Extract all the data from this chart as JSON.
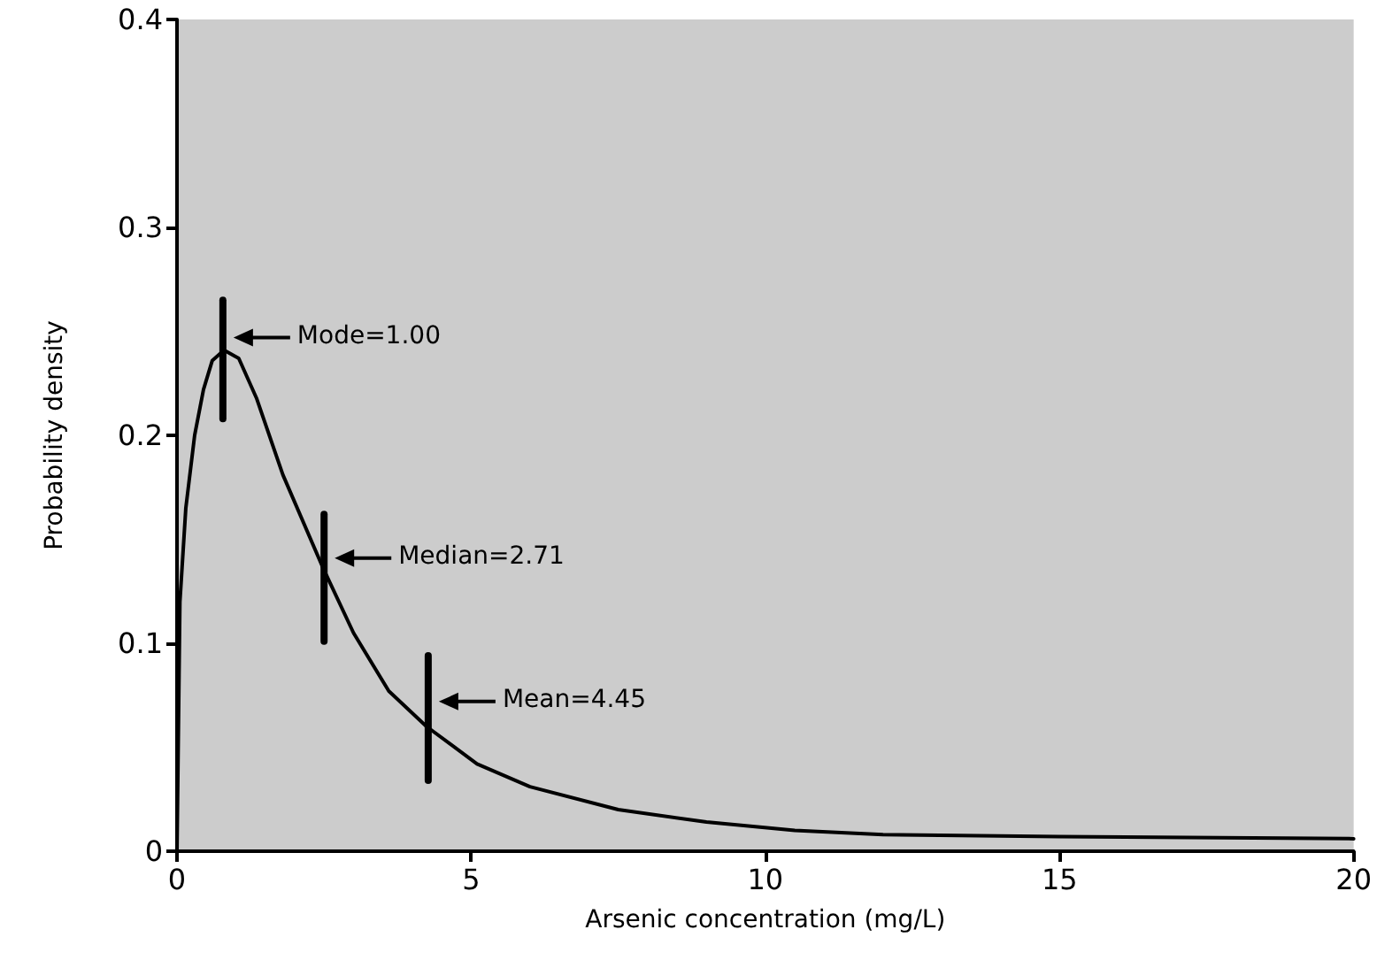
{
  "chart_data": {
    "type": "line",
    "xlabel": "Arsenic concentration (mg/L)",
    "ylabel": "Probability density",
    "x": [
      0,
      0.05,
      0.15,
      0.3,
      0.45,
      0.6,
      0.8,
      1.05,
      1.35,
      1.8,
      2.47,
      3.0,
      3.6,
      4.24,
      5.1,
      6.0,
      7.5,
      9,
      10.5,
      12,
      15,
      20
    ],
    "series": [
      {
        "color": "#000000",
        "values": [
          0,
          0.12,
          0.165,
          0.2,
          0.222,
          0.236,
          0.241,
          0.237,
          0.218,
          0.181,
          0.137,
          0.105,
          0.077,
          0.06,
          0.042,
          0.031,
          0.02,
          0.014,
          0.01,
          0.008,
          0.007,
          0.006
        ]
      },
      {
        "color": "#000000",
        "x": [
          0.78,
          0.78
        ],
        "values": [
          0.208,
          0.265
        ]
      },
      {
        "color": "#000000",
        "x": [
          2.5,
          2.5
        ],
        "values": [
          0.101,
          0.162
        ]
      },
      {
        "color": "#000000",
        "x": [
          4.27,
          4.27
        ],
        "values": [
          0.034,
          0.094
        ]
      }
    ],
    "annotations": [
      {
        "text": "Mode=1.00",
        "x": 0.78,
        "y": 0.247
      },
      {
        "text": "Median=2.71",
        "x": 2.5,
        "y": 0.141
      },
      {
        "text": "Mean=4.45",
        "x": 4.27,
        "y": 0.072
      }
    ],
    "xlim": [
      0,
      20
    ],
    "xticks": [
      0,
      5,
      10,
      15,
      20
    ],
    "ylim": [
      0,
      0.4
    ],
    "yticks": [
      0,
      0.1,
      0.2,
      0.3,
      0.4
    ],
    "grid": false,
    "marker": "none",
    "line_style": "solid"
  }
}
